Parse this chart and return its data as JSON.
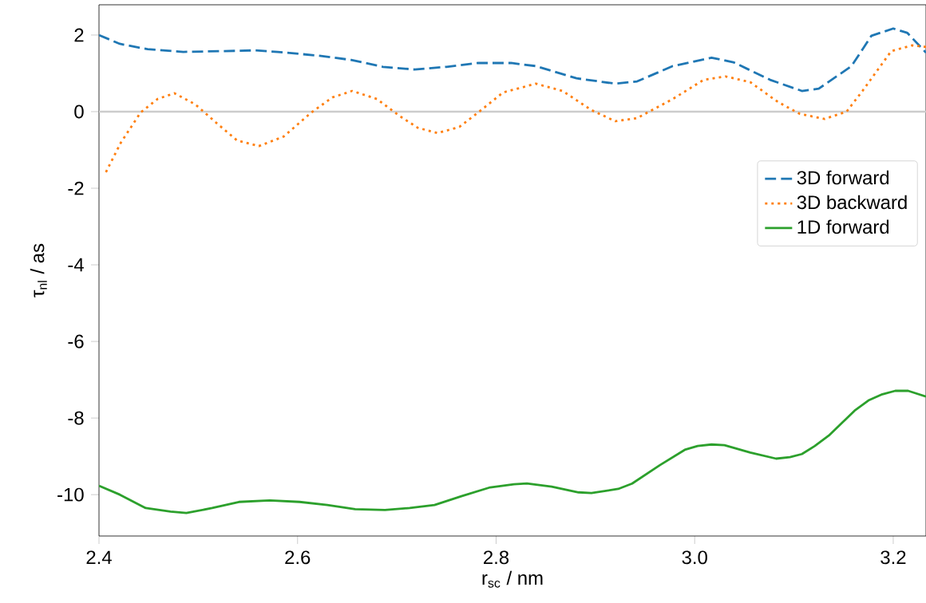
{
  "chart_data": {
    "type": "line",
    "xlabel": "r$_{sc}$ / nm",
    "ylabel": "τ$_{nl}$ / as",
    "xlim": [
      2.4,
      3.233
    ],
    "ylim": [
      -11.08,
      2.79
    ],
    "xticks": [
      2.4,
      2.6,
      2.8,
      {
        "value": 3.0,
        "label": "3.0"
      },
      3.2
    ],
    "yticks": [
      -10,
      -8,
      -6,
      -4,
      -2,
      0,
      2
    ],
    "legend": "right",
    "grid": false,
    "ref_lines": [
      {
        "axis": "y",
        "value": 0,
        "color": "#cccccc"
      }
    ],
    "series": [
      {
        "name": "3D forward",
        "color": "#1f77b4",
        "line_style": "dashed",
        "x": [
          2.4,
          2.421,
          2.449,
          2.485,
          2.525,
          2.557,
          2.58,
          2.622,
          2.654,
          2.686,
          2.718,
          2.75,
          2.782,
          2.815,
          2.84,
          2.881,
          2.92,
          2.942,
          2.978,
          3.017,
          3.039,
          3.076,
          3.108,
          3.125,
          3.158,
          3.178,
          3.2,
          3.214,
          3.233
        ],
        "values": [
          2.0,
          1.77,
          1.63,
          1.56,
          1.58,
          1.6,
          1.56,
          1.46,
          1.35,
          1.17,
          1.1,
          1.17,
          1.27,
          1.27,
          1.19,
          0.87,
          0.73,
          0.79,
          1.19,
          1.41,
          1.29,
          0.83,
          0.54,
          0.6,
          1.19,
          1.98,
          2.17,
          2.06,
          1.54
        ]
      },
      {
        "name": "3D backward",
        "color": "#ff7f0e",
        "line_style": "dotted",
        "x": [
          2.407,
          2.422,
          2.442,
          2.459,
          2.476,
          2.497,
          2.519,
          2.539,
          2.561,
          2.586,
          2.614,
          2.635,
          2.655,
          2.68,
          2.702,
          2.721,
          2.741,
          2.763,
          2.782,
          2.807,
          2.84,
          2.867,
          2.896,
          2.92,
          2.942,
          2.978,
          3.009,
          3.031,
          3.056,
          3.084,
          3.106,
          3.131,
          3.153,
          3.169,
          3.198,
          3.219,
          3.233
        ],
        "values": [
          -1.58,
          -0.81,
          -0.02,
          0.33,
          0.48,
          0.19,
          -0.31,
          -0.75,
          -0.9,
          -0.65,
          -0.02,
          0.37,
          0.54,
          0.33,
          -0.1,
          -0.42,
          -0.56,
          -0.4,
          -0.02,
          0.5,
          0.73,
          0.54,
          0.04,
          -0.25,
          -0.17,
          0.33,
          0.83,
          0.92,
          0.77,
          0.25,
          -0.06,
          -0.19,
          0.0,
          0.54,
          1.58,
          1.73,
          1.69
        ]
      },
      {
        "name": "1D forward",
        "color": "#2ca02c",
        "line_style": "solid",
        "x": [
          2.4,
          2.421,
          2.447,
          2.472,
          2.488,
          2.514,
          2.541,
          2.572,
          2.602,
          2.63,
          2.658,
          2.688,
          2.713,
          2.738,
          2.765,
          2.794,
          2.818,
          2.831,
          2.856,
          2.883,
          2.896,
          2.923,
          2.937,
          2.965,
          2.99,
          3.003,
          3.017,
          3.03,
          3.056,
          3.082,
          3.096,
          3.108,
          3.121,
          3.135,
          3.161,
          3.175,
          3.189,
          3.202,
          3.215,
          3.233
        ],
        "values": [
          -9.77,
          -10.0,
          -10.35,
          -10.44,
          -10.48,
          -10.35,
          -10.19,
          -10.15,
          -10.19,
          -10.27,
          -10.38,
          -10.4,
          -10.35,
          -10.27,
          -10.04,
          -9.81,
          -9.73,
          -9.71,
          -9.79,
          -9.94,
          -9.96,
          -9.85,
          -9.71,
          -9.23,
          -8.83,
          -8.73,
          -8.69,
          -8.71,
          -8.9,
          -9.06,
          -9.02,
          -8.94,
          -8.73,
          -8.46,
          -7.81,
          -7.54,
          -7.38,
          -7.29,
          -7.29,
          -7.44
        ]
      }
    ]
  }
}
